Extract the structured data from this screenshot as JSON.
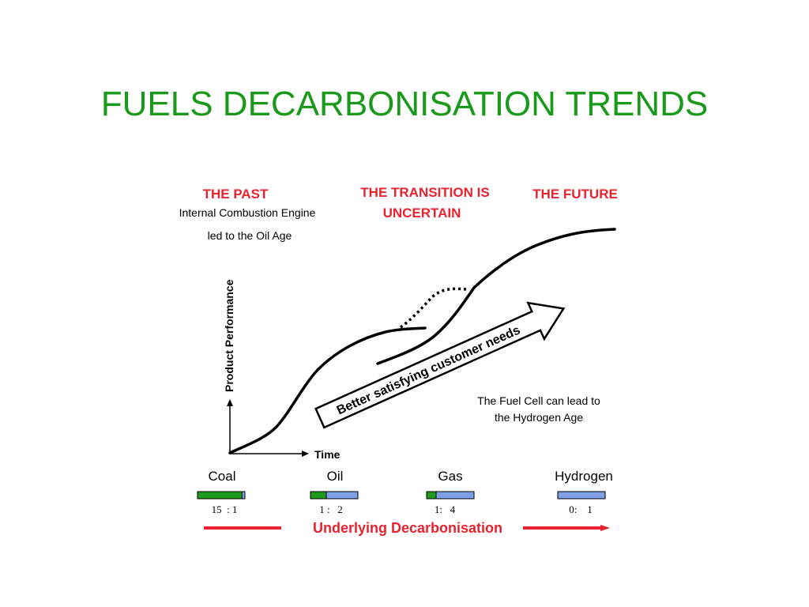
{
  "slide": {
    "title": "FUELS DECARBONISATION TRENDS"
  },
  "diagram": {
    "past_heading": "THE PAST",
    "past_note_line1": "Internal Combustion Engine",
    "past_note_line2": "led to the Oil Age",
    "transition_line1": "THE TRANSITION IS",
    "transition_line2": "UNCERTAIN",
    "future_heading": "THE FUTURE",
    "y_axis_label": "Product Performance",
    "x_axis_label": "Time",
    "arrow_label": "Better satisfying customer needs",
    "fuel_cell_line1": "The Fuel Cell can lead to",
    "fuel_cell_line2": "the Hydrogen Age",
    "bottom_label": "Underlying Decarbonisation",
    "colors": {
      "carbon": "#1f9a1f",
      "hydrogen": "#7f9fe8",
      "heading": "#e8232f",
      "title": "#1a9a1a"
    },
    "fuels": [
      {
        "name": "Coal",
        "ratio_text": "15  : 1",
        "carbon_fraction": 0.9375
      },
      {
        "name": "Oil",
        "ratio_text": "1 :   2",
        "carbon_fraction": 0.3333
      },
      {
        "name": "Gas",
        "ratio_text": "1:   4",
        "carbon_fraction": 0.2
      },
      {
        "name": "Hydrogen",
        "ratio_text": "0:    1",
        "carbon_fraction": 0.0
      }
    ]
  }
}
